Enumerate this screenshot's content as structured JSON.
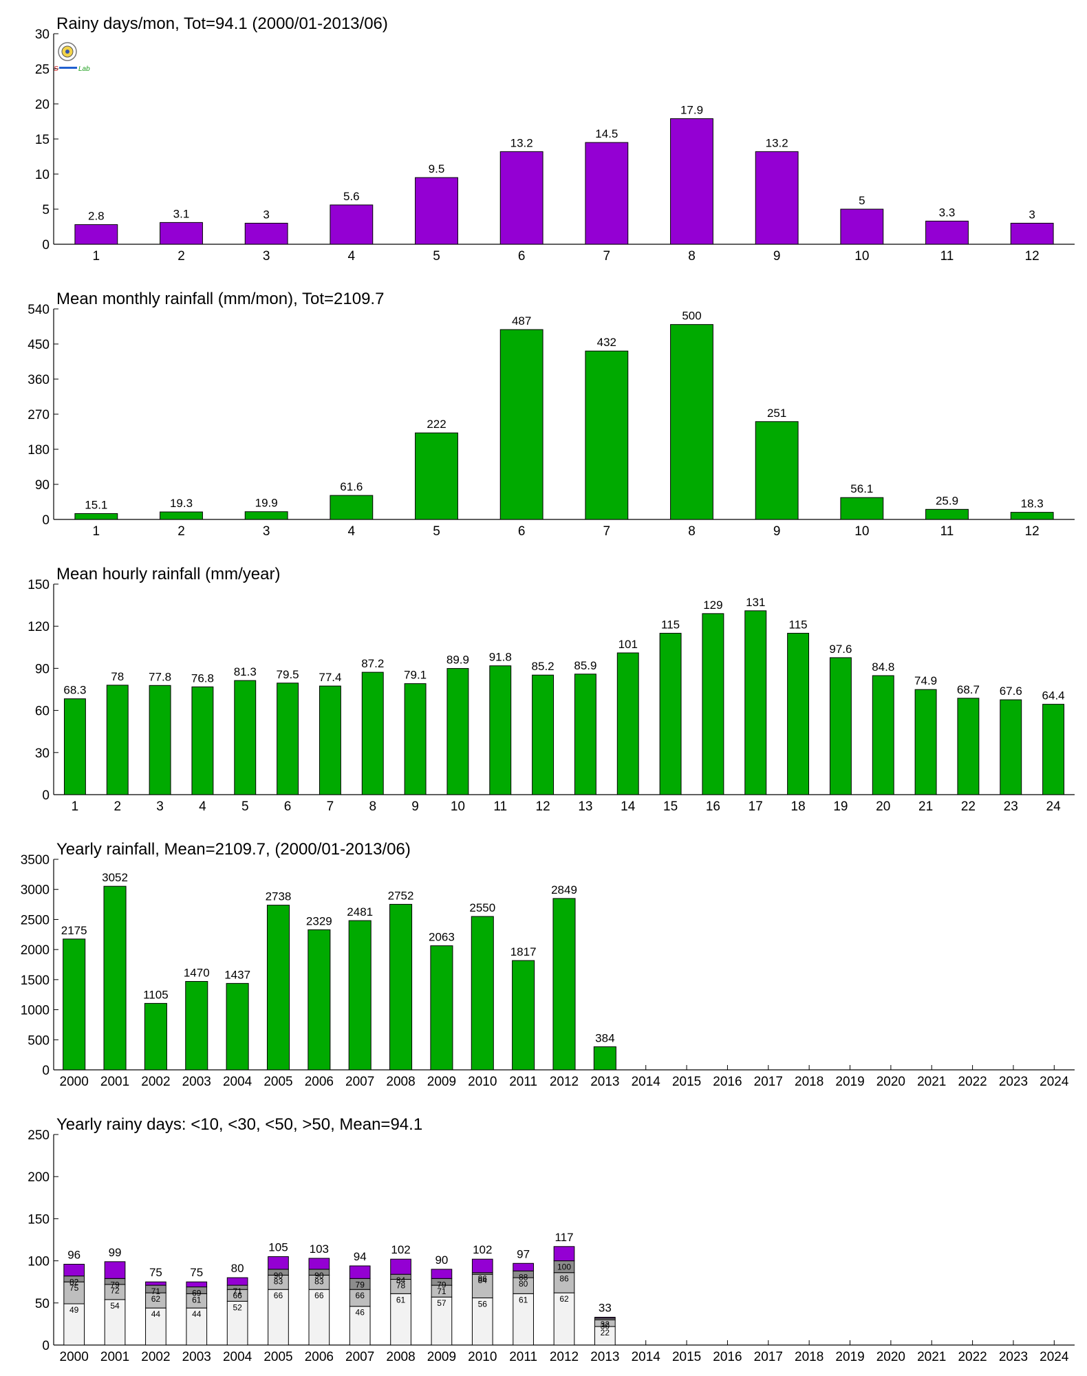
{
  "colors": {
    "purple": "#9400D3",
    "green": "#00AA00",
    "seg_lt10": "#F2F2F2",
    "seg_lt30": "#BEBEBE",
    "seg_lt50": "#8C8C8C",
    "seg_gt50": "#9400D3"
  },
  "logo": {
    "icon": "seal-logo-icon",
    "text_a": "S",
    "text_b": "Lab"
  },
  "chart_data": [
    {
      "type": "bar",
      "title": "Rainy days/mon, Tot=94.1 (2000/01-2013/06)",
      "categories": [
        "1",
        "2",
        "3",
        "4",
        "5",
        "6",
        "7",
        "8",
        "9",
        "10",
        "11",
        "12"
      ],
      "values": [
        2.8,
        3.1,
        3,
        5.6,
        9.5,
        13.2,
        14.5,
        17.9,
        13.2,
        5,
        3.3,
        3
      ],
      "labels": [
        "2.8",
        "3.1",
        "3",
        "5.6",
        "9.5",
        "13.2",
        "14.5",
        "17.9",
        "13.2",
        "5",
        "3.3",
        "3"
      ],
      "ylim": [
        0,
        30
      ],
      "yticks": [
        0,
        5,
        10,
        15,
        20,
        25,
        30
      ],
      "color": "#9400D3"
    },
    {
      "type": "bar",
      "title": "Mean monthly rainfall (mm/mon), Tot=2109.7",
      "categories": [
        "1",
        "2",
        "3",
        "4",
        "5",
        "6",
        "7",
        "8",
        "9",
        "10",
        "11",
        "12"
      ],
      "values": [
        15.1,
        19.3,
        19.9,
        61.6,
        222,
        487,
        432,
        500,
        251,
        56.1,
        25.9,
        18.3
      ],
      "labels": [
        "15.1",
        "19.3",
        "19.9",
        "61.6",
        "222",
        "487",
        "432",
        "500",
        "251",
        "56.1",
        "25.9",
        "18.3"
      ],
      "ylim": [
        0,
        540
      ],
      "yticks": [
        0,
        90,
        180,
        270,
        360,
        450,
        540
      ],
      "color": "#00AA00"
    },
    {
      "type": "bar",
      "title": "Mean hourly rainfall (mm/year)",
      "categories": [
        "1",
        "2",
        "3",
        "4",
        "5",
        "6",
        "7",
        "8",
        "9",
        "10",
        "11",
        "12",
        "13",
        "14",
        "15",
        "16",
        "17",
        "18",
        "19",
        "20",
        "21",
        "22",
        "23",
        "24"
      ],
      "values": [
        68.3,
        78,
        77.8,
        76.8,
        81.3,
        79.5,
        77.4,
        87.2,
        79.1,
        89.9,
        91.8,
        85.2,
        85.9,
        101,
        115,
        129,
        131,
        115,
        97.6,
        84.8,
        74.9,
        68.7,
        67.6,
        64.4
      ],
      "labels": [
        "68.3",
        "78",
        "77.8",
        "76.8",
        "81.3",
        "79.5",
        "77.4",
        "87.2",
        "79.1",
        "89.9",
        "91.8",
        "85.2",
        "85.9",
        "101",
        "115",
        "129",
        "131",
        "115",
        "97.6",
        "84.8",
        "74.9",
        "68.7",
        "67.6",
        "64.4"
      ],
      "ylim": [
        0,
        150
      ],
      "yticks": [
        0,
        30,
        60,
        90,
        120,
        150
      ],
      "color": "#00AA00"
    },
    {
      "type": "bar",
      "title": "Yearly rainfall, Mean=2109.7, (2000/01-2013/06)",
      "categories": [
        "2000",
        "2001",
        "2002",
        "2003",
        "2004",
        "2005",
        "2006",
        "2007",
        "2008",
        "2009",
        "2010",
        "2011",
        "2012",
        "2013",
        "2014",
        "2015",
        "2016",
        "2017",
        "2018",
        "2019",
        "2020",
        "2021",
        "2022",
        "2023",
        "2024"
      ],
      "values": [
        2175,
        3052,
        1105,
        1470,
        1437,
        2738,
        2329,
        2481,
        2752,
        2063,
        2550,
        1817,
        2849,
        384,
        null,
        null,
        null,
        null,
        null,
        null,
        null,
        null,
        null,
        null,
        null
      ],
      "labels": [
        "2175",
        "3052",
        "1105",
        "1470",
        "1437",
        "2738",
        "2329",
        "2481",
        "2752",
        "2063",
        "2550",
        "1817",
        "2849",
        "384",
        "",
        "",
        "",
        "",
        "",
        "",
        "",
        "",
        "",
        "",
        ""
      ],
      "ylim": [
        0,
        3500
      ],
      "yticks": [
        0,
        500,
        1000,
        1500,
        2000,
        2500,
        3000,
        3500
      ],
      "color": "#00AA00"
    },
    {
      "type": "bar",
      "stacked": true,
      "title": "Yearly rainy days: <10, <30, <50, >50, Mean=94.1",
      "categories": [
        "2000",
        "2001",
        "2002",
        "2003",
        "2004",
        "2005",
        "2006",
        "2007",
        "2008",
        "2009",
        "2010",
        "2011",
        "2012",
        "2013",
        "2014",
        "2015",
        "2016",
        "2017",
        "2018",
        "2019",
        "2020",
        "2021",
        "2022",
        "2023",
        "2024"
      ],
      "cumulative": {
        "lt10": [
          49,
          54,
          44,
          44,
          52,
          66,
          66,
          46,
          61,
          57,
          56,
          61,
          62,
          22,
          null,
          null,
          null,
          null,
          null,
          null,
          null,
          null,
          null,
          null,
          null
        ],
        "lt30": [
          75,
          72,
          62,
          61,
          66,
          83,
          83,
          66,
          78,
          71,
          84,
          80,
          86,
          30,
          null,
          null,
          null,
          null,
          null,
          null,
          null,
          null,
          null,
          null,
          null
        ],
        "lt50": [
          82,
          79,
          71,
          69,
          71,
          90,
          90,
          79,
          84,
          79,
          86,
          88,
          100,
          32,
          null,
          null,
          null,
          null,
          null,
          null,
          null,
          null,
          null,
          null,
          null
        ],
        "total": [
          96,
          99,
          75,
          75,
          80,
          105,
          103,
          94,
          102,
          90,
          102,
          97,
          117,
          33,
          null,
          null,
          null,
          null,
          null,
          null,
          null,
          null,
          null,
          null,
          null
        ]
      },
      "ylim": [
        0,
        250
      ],
      "yticks": [
        0,
        50,
        100,
        150,
        200,
        250
      ]
    }
  ]
}
